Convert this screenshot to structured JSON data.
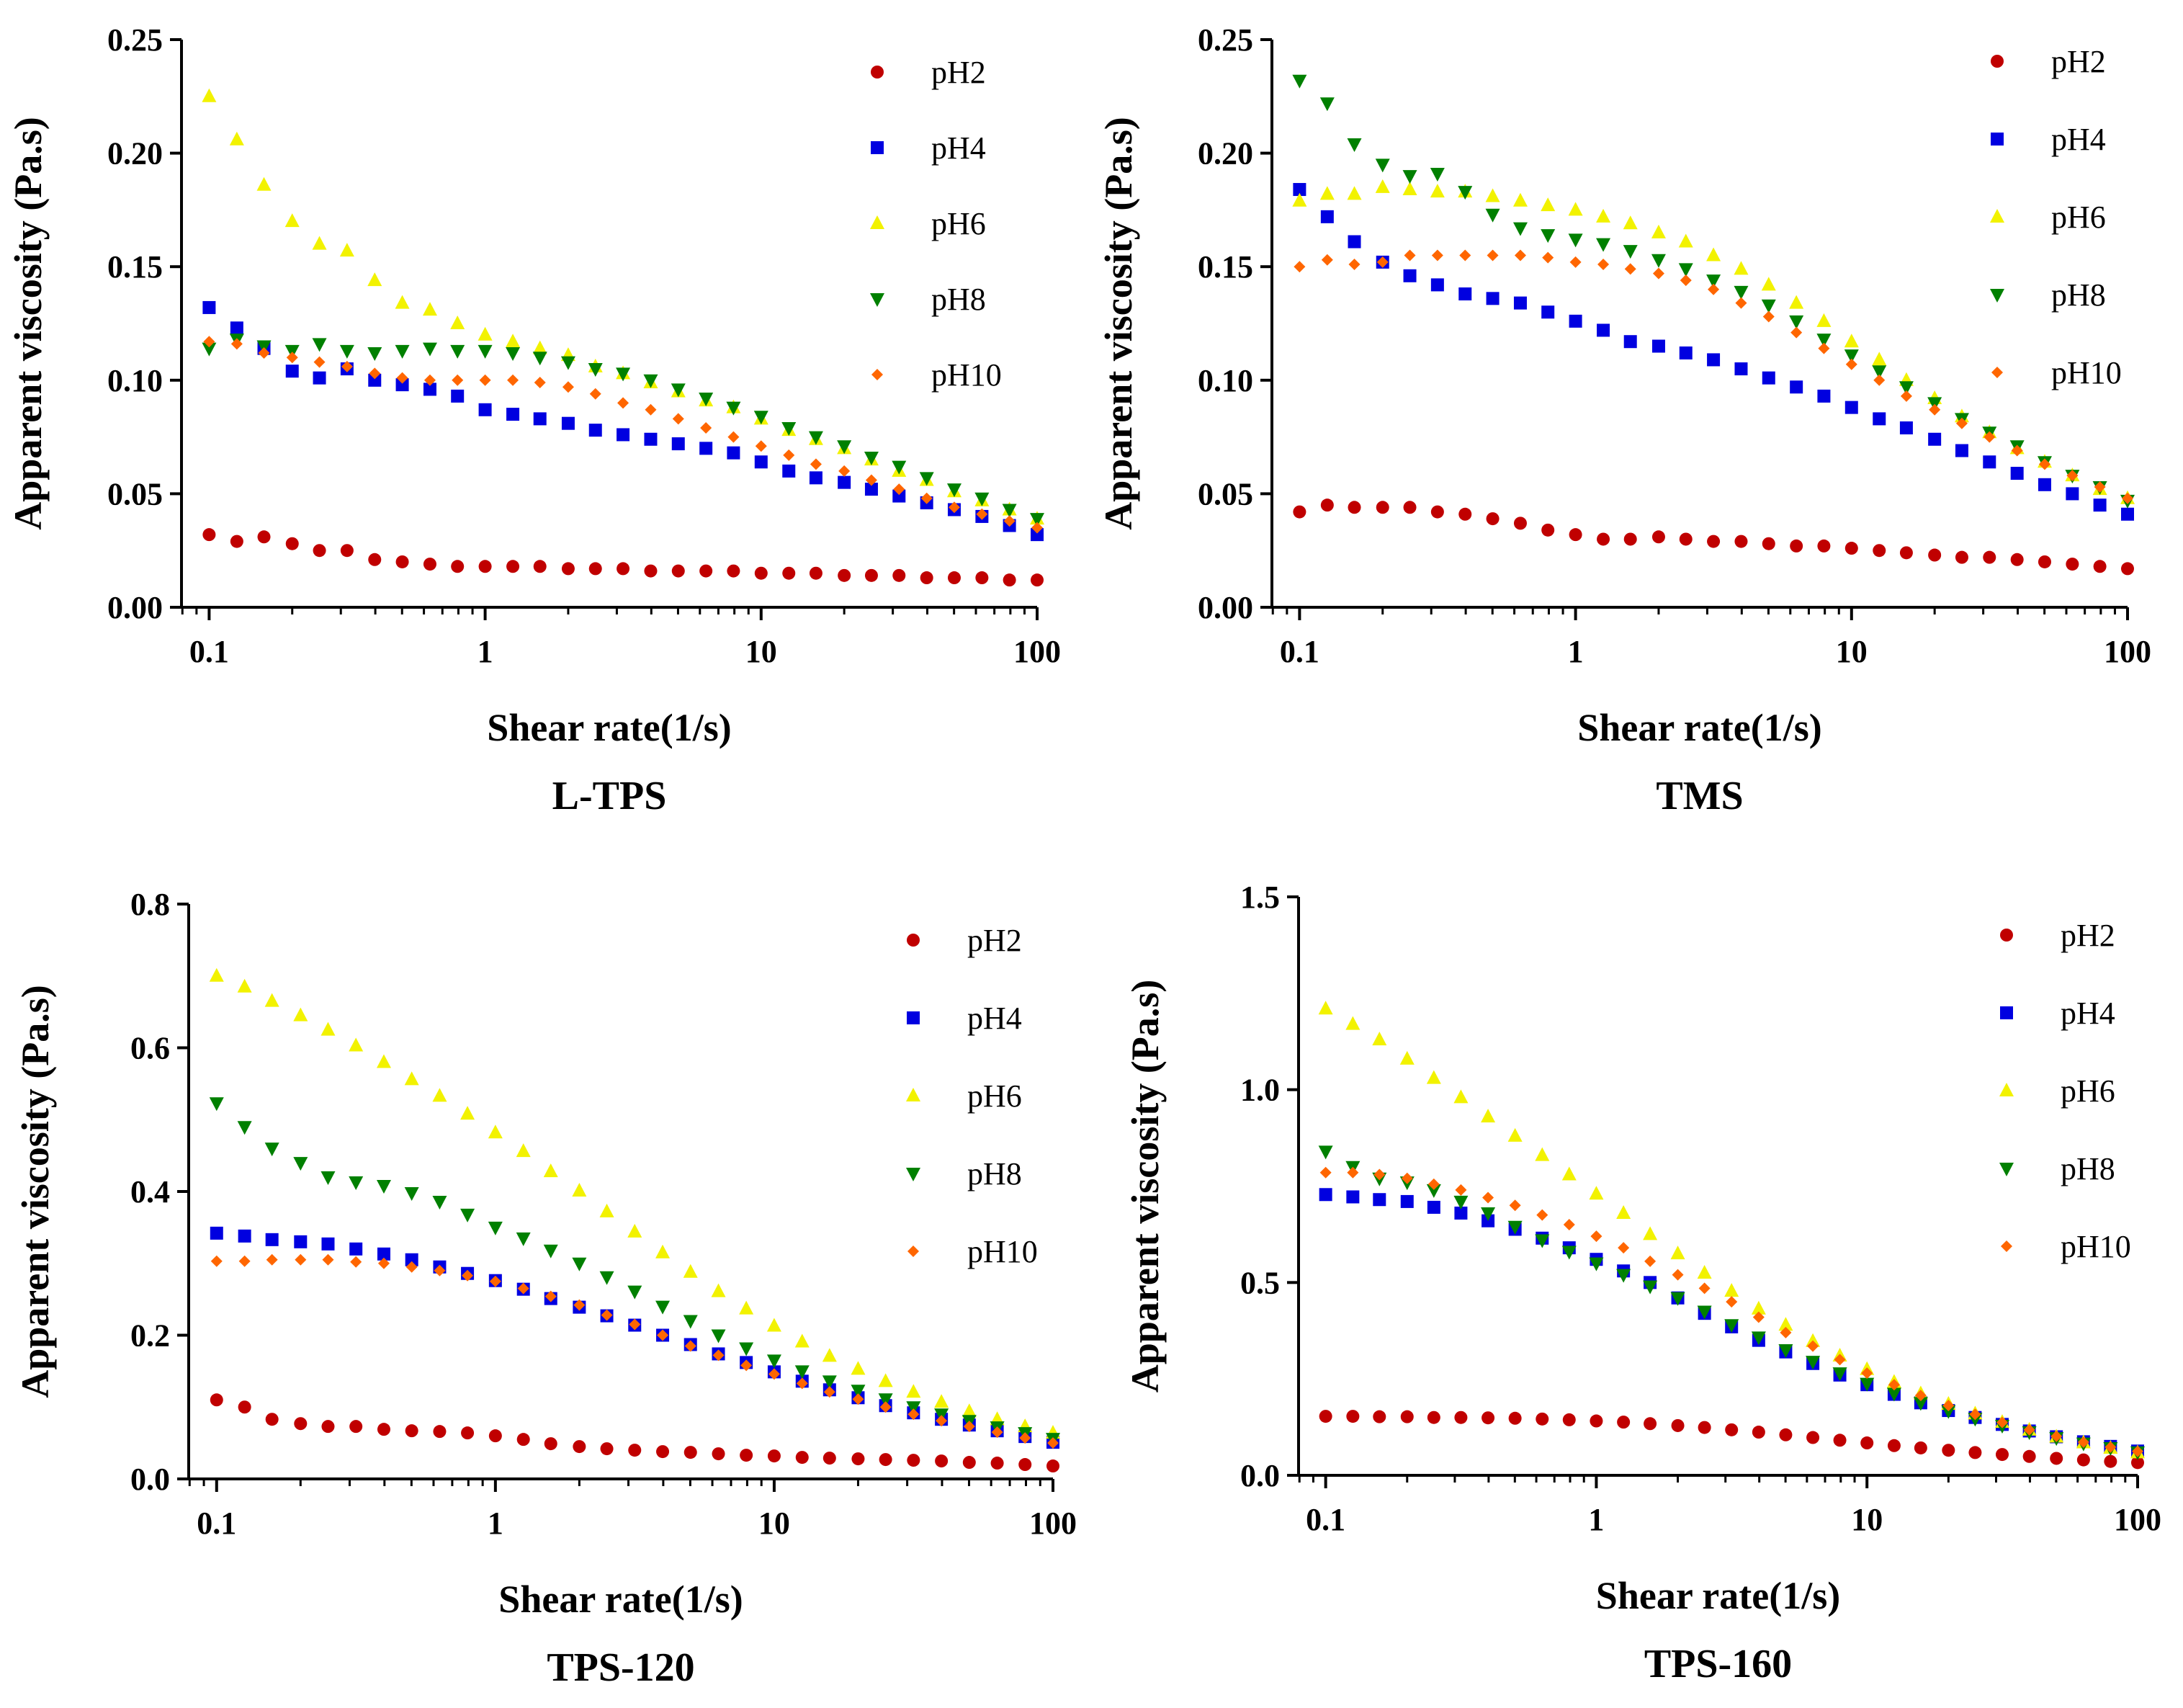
{
  "colors": {
    "pH2": "#c00000",
    "pH4": "#0000e0",
    "pH6": "#f2f200",
    "pH8": "#008000",
    "pH10": "#ff6600"
  },
  "chart_data": [
    {
      "type": "scatter",
      "title": "L-TPS",
      "xlabel": "Shear rate(1/s)",
      "ylabel": "Apparent viscosity (Pa.s)",
      "xscale": "log",
      "xlim": [
        0.0794,
        100
      ],
      "ylim": [
        0,
        0.25
      ],
      "xticks": [
        {
          "v": 0.1,
          "label": "0.1"
        },
        {
          "v": 1,
          "label": "1"
        },
        {
          "v": 10,
          "label": "10"
        },
        {
          "v": 100,
          "label": "100"
        }
      ],
      "yticks": [
        {
          "v": 0,
          "label": "0.00"
        },
        {
          "v": 0.05,
          "label": "0.05"
        },
        {
          "v": 0.1,
          "label": "0.10"
        },
        {
          "v": 0.15,
          "label": "0.15"
        },
        {
          "v": 0.2,
          "label": "0.20"
        },
        {
          "v": 0.25,
          "label": "0.25"
        }
      ],
      "legend_position": "top-right",
      "x": [
        0.1,
        0.126,
        0.158,
        0.2,
        0.251,
        0.316,
        0.398,
        0.501,
        0.631,
        0.794,
        1,
        1.26,
        1.58,
        2,
        2.51,
        3.16,
        3.98,
        5.01,
        6.31,
        7.94,
        10,
        12.6,
        15.8,
        20,
        25.1,
        31.6,
        39.8,
        50.1,
        63.1,
        79.4,
        100
      ],
      "series": [
        {
          "name": "pH2",
          "marker": "circle",
          "values": [
            0.032,
            0.029,
            0.031,
            0.028,
            0.025,
            0.025,
            0.021,
            0.02,
            0.019,
            0.018,
            0.018,
            0.018,
            0.018,
            0.017,
            0.017,
            0.017,
            0.016,
            0.016,
            0.016,
            0.016,
            0.015,
            0.015,
            0.015,
            0.014,
            0.014,
            0.014,
            0.013,
            0.013,
            0.013,
            0.012,
            0.012
          ]
        },
        {
          "name": "pH4",
          "marker": "square",
          "values": [
            0.132,
            0.123,
            0.114,
            0.104,
            0.101,
            0.105,
            0.1,
            0.098,
            0.096,
            0.093,
            0.087,
            0.085,
            0.083,
            0.081,
            0.078,
            0.076,
            0.074,
            0.072,
            0.07,
            0.068,
            0.064,
            0.06,
            0.057,
            0.055,
            0.052,
            0.049,
            0.046,
            0.043,
            0.04,
            0.036,
            0.032
          ]
        },
        {
          "name": "pH6",
          "marker": "triangle-up",
          "values": [
            0.225,
            0.206,
            0.186,
            0.17,
            0.16,
            0.157,
            0.144,
            0.134,
            0.131,
            0.125,
            0.12,
            0.117,
            0.114,
            0.111,
            0.106,
            0.103,
            0.099,
            0.095,
            0.091,
            0.088,
            0.083,
            0.078,
            0.074,
            0.07,
            0.065,
            0.06,
            0.056,
            0.051,
            0.047,
            0.043,
            0.039
          ]
        },
        {
          "name": "pH8",
          "marker": "triangle-down",
          "values": [
            0.114,
            0.118,
            0.115,
            0.113,
            0.116,
            0.113,
            0.112,
            0.113,
            0.114,
            0.113,
            0.113,
            0.112,
            0.11,
            0.108,
            0.105,
            0.103,
            0.1,
            0.096,
            0.092,
            0.088,
            0.084,
            0.079,
            0.075,
            0.071,
            0.066,
            0.062,
            0.057,
            0.052,
            0.048,
            0.043,
            0.039
          ]
        },
        {
          "name": "pH10",
          "marker": "diamond",
          "values": [
            0.117,
            0.116,
            0.112,
            0.11,
            0.108,
            0.106,
            0.103,
            0.101,
            0.1,
            0.1,
            0.1,
            0.1,
            0.099,
            0.097,
            0.094,
            0.09,
            0.087,
            0.083,
            0.079,
            0.075,
            0.071,
            0.067,
            0.063,
            0.06,
            0.056,
            0.052,
            0.048,
            0.044,
            0.041,
            0.038,
            0.035
          ]
        }
      ]
    },
    {
      "type": "scatter",
      "title": "TMS",
      "xlabel": "Shear rate(1/s)",
      "ylabel": "Apparent viscosity (Pa.s)",
      "xscale": "log",
      "xlim": [
        0.0794,
        100
      ],
      "ylim": [
        0,
        0.25
      ],
      "xticks": [
        {
          "v": 0.1,
          "label": "0.1"
        },
        {
          "v": 1,
          "label": "1"
        },
        {
          "v": 10,
          "label": "10"
        },
        {
          "v": 100,
          "label": "100"
        }
      ],
      "yticks": [
        {
          "v": 0,
          "label": "0.00"
        },
        {
          "v": 0.05,
          "label": "0.05"
        },
        {
          "v": 0.1,
          "label": "0.10"
        },
        {
          "v": 0.15,
          "label": "0.15"
        },
        {
          "v": 0.2,
          "label": "0.20"
        },
        {
          "v": 0.25,
          "label": "0.25"
        }
      ],
      "legend_position": "top-right",
      "x": [
        0.1,
        0.126,
        0.158,
        0.2,
        0.251,
        0.316,
        0.398,
        0.501,
        0.631,
        0.794,
        1,
        1.26,
        1.58,
        2,
        2.51,
        3.16,
        3.98,
        5.01,
        6.31,
        7.94,
        10,
        12.6,
        15.8,
        20,
        25.1,
        31.6,
        39.8,
        50.1,
        63.1,
        79.4,
        100
      ],
      "series": [
        {
          "name": "pH2",
          "marker": "circle",
          "values": [
            0.042,
            0.045,
            0.044,
            0.044,
            0.044,
            0.042,
            0.041,
            0.039,
            0.037,
            0.034,
            0.032,
            0.03,
            0.03,
            0.031,
            0.03,
            0.029,
            0.029,
            0.028,
            0.027,
            0.027,
            0.026,
            0.025,
            0.024,
            0.023,
            0.022,
            0.022,
            0.021,
            0.02,
            0.019,
            0.018,
            0.017
          ]
        },
        {
          "name": "pH4",
          "marker": "square",
          "values": [
            0.184,
            0.172,
            0.161,
            0.152,
            0.146,
            0.142,
            0.138,
            0.136,
            0.134,
            0.13,
            0.126,
            0.122,
            0.117,
            0.115,
            0.112,
            0.109,
            0.105,
            0.101,
            0.097,
            0.093,
            0.088,
            0.083,
            0.079,
            0.074,
            0.069,
            0.064,
            0.059,
            0.054,
            0.05,
            0.045,
            0.041
          ]
        },
        {
          "name": "pH6",
          "marker": "triangle-up",
          "values": [
            0.179,
            0.182,
            0.182,
            0.185,
            0.184,
            0.183,
            0.183,
            0.181,
            0.179,
            0.177,
            0.175,
            0.172,
            0.169,
            0.165,
            0.161,
            0.155,
            0.149,
            0.142,
            0.134,
            0.126,
            0.117,
            0.109,
            0.1,
            0.092,
            0.084,
            0.077,
            0.07,
            0.064,
            0.058,
            0.052,
            0.048
          ]
        },
        {
          "name": "pH8",
          "marker": "triangle-down",
          "values": [
            0.232,
            0.222,
            0.204,
            0.195,
            0.19,
            0.191,
            0.183,
            0.173,
            0.167,
            0.164,
            0.162,
            0.16,
            0.157,
            0.153,
            0.149,
            0.144,
            0.139,
            0.133,
            0.126,
            0.118,
            0.111,
            0.104,
            0.097,
            0.09,
            0.083,
            0.077,
            0.071,
            0.064,
            0.058,
            0.053,
            0.047
          ]
        },
        {
          "name": "pH10",
          "marker": "diamond",
          "values": [
            0.15,
            0.153,
            0.151,
            0.152,
            0.155,
            0.155,
            0.155,
            0.155,
            0.155,
            0.154,
            0.152,
            0.151,
            0.149,
            0.147,
            0.144,
            0.14,
            0.134,
            0.128,
            0.121,
            0.114,
            0.107,
            0.1,
            0.093,
            0.087,
            0.081,
            0.075,
            0.069,
            0.063,
            0.058,
            0.053,
            0.048
          ]
        }
      ]
    },
    {
      "type": "scatter",
      "title": "TPS-120",
      "xlabel": "Shear rate(1/s)",
      "ylabel": "Apparent viscosity (Pa.s)",
      "xscale": "log",
      "xlim": [
        0.0794,
        100
      ],
      "ylim": [
        0,
        0.8
      ],
      "xticks": [
        {
          "v": 0.1,
          "label": "0.1"
        },
        {
          "v": 1,
          "label": "1"
        },
        {
          "v": 10,
          "label": "10"
        },
        {
          "v": 100,
          "label": "100"
        }
      ],
      "yticks": [
        {
          "v": 0,
          "label": "0.0"
        },
        {
          "v": 0.2,
          "label": "0.2"
        },
        {
          "v": 0.4,
          "label": "0.4"
        },
        {
          "v": 0.6,
          "label": "0.6"
        },
        {
          "v": 0.8,
          "label": "0.8"
        }
      ],
      "legend_position": "top-right",
      "x": [
        0.1,
        0.126,
        0.158,
        0.2,
        0.251,
        0.316,
        0.398,
        0.501,
        0.631,
        0.794,
        1,
        1.26,
        1.58,
        2,
        2.51,
        3.16,
        3.98,
        5.01,
        6.31,
        7.94,
        10,
        12.6,
        15.8,
        20,
        25.1,
        31.6,
        39.8,
        50.1,
        63.1,
        79.4,
        100
      ],
      "series": [
        {
          "name": "pH2",
          "marker": "circle",
          "values": [
            0.11,
            0.1,
            0.083,
            0.077,
            0.073,
            0.073,
            0.069,
            0.067,
            0.066,
            0.064,
            0.06,
            0.055,
            0.049,
            0.045,
            0.042,
            0.04,
            0.038,
            0.037,
            0.035,
            0.033,
            0.032,
            0.03,
            0.029,
            0.028,
            0.027,
            0.026,
            0.025,
            0.023,
            0.022,
            0.02,
            0.018
          ]
        },
        {
          "name": "pH4",
          "marker": "square",
          "values": [
            0.342,
            0.338,
            0.333,
            0.33,
            0.327,
            0.32,
            0.313,
            0.305,
            0.295,
            0.286,
            0.276,
            0.264,
            0.251,
            0.239,
            0.227,
            0.214,
            0.2,
            0.187,
            0.174,
            0.162,
            0.149,
            0.136,
            0.124,
            0.113,
            0.102,
            0.092,
            0.083,
            0.075,
            0.067,
            0.059,
            0.051
          ]
        },
        {
          "name": "pH6",
          "marker": "triangle-up",
          "values": [
            0.7,
            0.685,
            0.665,
            0.645,
            0.625,
            0.603,
            0.58,
            0.556,
            0.533,
            0.508,
            0.482,
            0.456,
            0.428,
            0.401,
            0.372,
            0.344,
            0.315,
            0.288,
            0.261,
            0.237,
            0.213,
            0.191,
            0.171,
            0.153,
            0.136,
            0.121,
            0.107,
            0.094,
            0.083,
            0.073,
            0.064
          ]
        },
        {
          "name": "pH8",
          "marker": "triangle-down",
          "values": [
            0.523,
            0.49,
            0.46,
            0.44,
            0.42,
            0.413,
            0.408,
            0.398,
            0.386,
            0.368,
            0.35,
            0.335,
            0.318,
            0.3,
            0.281,
            0.261,
            0.24,
            0.22,
            0.2,
            0.182,
            0.165,
            0.15,
            0.136,
            0.123,
            0.111,
            0.1,
            0.09,
            0.081,
            0.072,
            0.064,
            0.056
          ]
        },
        {
          "name": "pH10",
          "marker": "diamond",
          "values": [
            0.303,
            0.303,
            0.305,
            0.305,
            0.305,
            0.302,
            0.3,
            0.295,
            0.29,
            0.283,
            0.275,
            0.265,
            0.254,
            0.242,
            0.228,
            0.215,
            0.2,
            0.185,
            0.172,
            0.158,
            0.146,
            0.133,
            0.121,
            0.111,
            0.1,
            0.09,
            0.081,
            0.073,
            0.065,
            0.057,
            0.05
          ]
        }
      ]
    },
    {
      "type": "scatter",
      "title": "TPS-160",
      "xlabel": "Shear rate(1/s)",
      "ylabel": "Apparent viscosity (Pa.s)",
      "xscale": "log",
      "xlim": [
        0.0794,
        100
      ],
      "ylim": [
        0,
        1.5
      ],
      "xticks": [
        {
          "v": 0.1,
          "label": "0.1"
        },
        {
          "v": 1,
          "label": "1"
        },
        {
          "v": 10,
          "label": "10"
        },
        {
          "v": 100,
          "label": "100"
        }
      ],
      "yticks": [
        {
          "v": 0,
          "label": "0.0"
        },
        {
          "v": 0.5,
          "label": "0.5"
        },
        {
          "v": 1.0,
          "label": "1.0"
        },
        {
          "v": 1.5,
          "label": "1.5"
        }
      ],
      "legend_position": "top-right",
      "x": [
        0.1,
        0.126,
        0.158,
        0.2,
        0.251,
        0.316,
        0.398,
        0.501,
        0.631,
        0.794,
        1,
        1.26,
        1.58,
        2,
        2.51,
        3.16,
        3.98,
        5.01,
        6.31,
        7.94,
        10,
        12.6,
        15.8,
        20,
        25.1,
        31.6,
        39.8,
        50.1,
        63.1,
        79.4,
        100
      ],
      "series": [
        {
          "name": "pH2",
          "marker": "circle",
          "values": [
            0.153,
            0.153,
            0.152,
            0.152,
            0.15,
            0.15,
            0.149,
            0.148,
            0.146,
            0.144,
            0.141,
            0.138,
            0.134,
            0.129,
            0.124,
            0.118,
            0.112,
            0.105,
            0.098,
            0.091,
            0.084,
            0.077,
            0.071,
            0.065,
            0.059,
            0.054,
            0.049,
            0.044,
            0.04,
            0.036,
            0.033
          ]
        },
        {
          "name": "pH4",
          "marker": "square",
          "values": [
            0.728,
            0.722,
            0.715,
            0.71,
            0.695,
            0.68,
            0.66,
            0.638,
            0.615,
            0.59,
            0.56,
            0.53,
            0.5,
            0.46,
            0.42,
            0.385,
            0.35,
            0.32,
            0.29,
            0.26,
            0.235,
            0.21,
            0.188,
            0.168,
            0.15,
            0.132,
            0.115,
            0.1,
            0.087,
            0.075,
            0.063
          ]
        },
        {
          "name": "pH6",
          "marker": "triangle-up",
          "values": [
            1.21,
            1.17,
            1.13,
            1.08,
            1.03,
            0.98,
            0.93,
            0.88,
            0.83,
            0.78,
            0.73,
            0.68,
            0.625,
            0.575,
            0.525,
            0.478,
            0.432,
            0.39,
            0.348,
            0.31,
            0.275,
            0.242,
            0.212,
            0.185,
            0.16,
            0.138,
            0.118,
            0.1,
            0.085,
            0.071,
            0.059
          ]
        },
        {
          "name": "pH8",
          "marker": "triangle-down",
          "values": [
            0.84,
            0.8,
            0.77,
            0.76,
            0.74,
            0.71,
            0.68,
            0.645,
            0.61,
            0.58,
            0.55,
            0.52,
            0.49,
            0.46,
            0.425,
            0.39,
            0.358,
            0.325,
            0.295,
            0.265,
            0.238,
            0.212,
            0.188,
            0.167,
            0.147,
            0.129,
            0.112,
            0.097,
            0.083,
            0.071,
            0.06
          ]
        },
        {
          "name": "pH10",
          "marker": "diamond",
          "values": [
            0.785,
            0.785,
            0.78,
            0.77,
            0.755,
            0.74,
            0.72,
            0.7,
            0.675,
            0.65,
            0.62,
            0.59,
            0.555,
            0.52,
            0.485,
            0.45,
            0.41,
            0.37,
            0.335,
            0.3,
            0.265,
            0.235,
            0.207,
            0.181,
            0.158,
            0.137,
            0.118,
            0.101,
            0.086,
            0.073,
            0.062
          ]
        }
      ]
    }
  ]
}
